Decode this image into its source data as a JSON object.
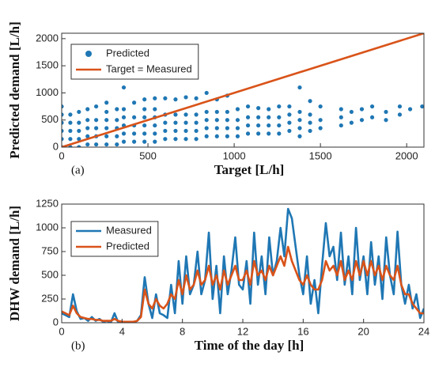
{
  "chart_data": [
    {
      "type": "scatter",
      "xlabel": "Target [L/h]",
      "ylabel": "Predicted demand [L/h]",
      "annotation": "(a)",
      "xlim": [
        0,
        2100
      ],
      "ylim": [
        0,
        2100
      ],
      "xticks": [
        0,
        500,
        1000,
        1500,
        2000
      ],
      "yticks": [
        0,
        500,
        1000,
        1500,
        2000
      ],
      "legend": "upper left",
      "series": [
        {
          "name": "Predicted",
          "type": "scatter",
          "color": "#1f77b4",
          "x": [
            0,
            0,
            0,
            0,
            0,
            0,
            50,
            50,
            50,
            50,
            50,
            100,
            100,
            100,
            100,
            100,
            150,
            150,
            150,
            150,
            150,
            200,
            200,
            200,
            200,
            200,
            260,
            260,
            260,
            260,
            260,
            260,
            320,
            320,
            320,
            320,
            320,
            360,
            360,
            360,
            360,
            360,
            360,
            420,
            420,
            420,
            420,
            420,
            480,
            480,
            480,
            480,
            480,
            480,
            540,
            540,
            540,
            540,
            540,
            540,
            600,
            600,
            600,
            600,
            600,
            660,
            660,
            660,
            660,
            660,
            720,
            720,
            720,
            720,
            720,
            780,
            780,
            780,
            780,
            780,
            840,
            840,
            840,
            840,
            840,
            900,
            900,
            900,
            900,
            900,
            960,
            960,
            960,
            960,
            960,
            1020,
            1020,
            1020,
            1020,
            1080,
            1080,
            1080,
            1080,
            1140,
            1140,
            1140,
            1140,
            1200,
            1200,
            1200,
            1200,
            1260,
            1260,
            1260,
            1260,
            1320,
            1320,
            1320,
            1320,
            1380,
            1380,
            1380,
            1380,
            1380,
            1440,
            1440,
            1440,
            1440,
            1500,
            1500,
            1500,
            1620,
            1620,
            1620,
            1680,
            1680,
            1740,
            1740,
            1800,
            1800,
            1880,
            1880,
            1960,
            1960,
            2020,
            2090
          ],
          "values": [
            0,
            150,
            300,
            450,
            600,
            750,
            0,
            150,
            300,
            450,
            600,
            0,
            150,
            300,
            450,
            650,
            50,
            200,
            350,
            500,
            700,
            50,
            200,
            350,
            500,
            750,
            50,
            200,
            350,
            500,
            650,
            820,
            50,
            200,
            350,
            500,
            700,
            100,
            250,
            400,
            550,
            700,
            1100,
            100,
            250,
            400,
            550,
            820,
            100,
            250,
            400,
            550,
            700,
            880,
            100,
            250,
            400,
            550,
            700,
            900,
            150,
            300,
            450,
            600,
            900,
            150,
            300,
            450,
            600,
            880,
            150,
            300,
            450,
            600,
            920,
            150,
            300,
            450,
            600,
            900,
            200,
            350,
            500,
            650,
            1000,
            200,
            350,
            500,
            650,
            880,
            200,
            350,
            500,
            650,
            950,
            200,
            350,
            500,
            700,
            250,
            400,
            550,
            750,
            250,
            400,
            550,
            720,
            250,
            400,
            550,
            700,
            250,
            400,
            550,
            750,
            300,
            450,
            600,
            750,
            200,
            350,
            500,
            650,
            1100,
            300,
            450,
            600,
            850,
            350,
            500,
            750,
            400,
            550,
            700,
            450,
            650,
            500,
            700,
            550,
            750,
            500,
            650,
            600,
            750,
            700,
            750
          ]
        },
        {
          "name": "Target = Measured",
          "type": "line",
          "color": "#d95319",
          "x": [
            0,
            2100
          ],
          "values": [
            0,
            2100
          ]
        }
      ]
    },
    {
      "type": "line",
      "xlabel": "Time of the day [h]",
      "ylabel": "DHW demand [L/h]",
      "annotation": "(b)",
      "xlim": [
        0,
        24
      ],
      "ylim": [
        0,
        1250
      ],
      "xticks": [
        0,
        4,
        8,
        12,
        16,
        20,
        24
      ],
      "yticks": [
        0,
        250,
        500,
        750,
        1000,
        1250
      ],
      "legend": "upper left",
      "x": [
        0,
        0.25,
        0.5,
        0.75,
        1,
        1.25,
        1.5,
        1.75,
        2,
        2.25,
        2.5,
        2.75,
        3,
        3.25,
        3.5,
        3.75,
        4,
        4.25,
        4.5,
        4.75,
        5,
        5.25,
        5.5,
        5.75,
        6,
        6.25,
        6.5,
        6.75,
        7,
        7.25,
        7.5,
        7.75,
        8,
        8.25,
        8.5,
        8.75,
        9,
        9.25,
        9.5,
        9.75,
        10,
        10.25,
        10.5,
        10.75,
        11,
        11.25,
        11.5,
        11.75,
        12,
        12.25,
        12.5,
        12.75,
        13,
        13.25,
        13.5,
        13.75,
        14,
        14.25,
        14.5,
        14.75,
        15,
        15.25,
        15.5,
        15.75,
        16,
        16.25,
        16.5,
        16.75,
        17,
        17.25,
        17.5,
        17.75,
        18,
        18.25,
        18.5,
        18.75,
        19,
        19.25,
        19.5,
        19.75,
        20,
        20.25,
        20.5,
        20.75,
        21,
        21.25,
        21.5,
        21.75,
        22,
        22.25,
        22.5,
        22.75,
        23,
        23.25,
        23.5,
        23.75,
        24
      ],
      "series": [
        {
          "name": "Measured",
          "color": "#1f77b4",
          "values": [
            100,
            80,
            60,
            300,
            120,
            40,
            50,
            20,
            60,
            20,
            40,
            10,
            20,
            0,
            100,
            0,
            0,
            0,
            0,
            0,
            20,
            80,
            480,
            200,
            50,
            300,
            100,
            80,
            50,
            400,
            100,
            650,
            200,
            700,
            300,
            400,
            750,
            300,
            450,
            950,
            250,
            600,
            100,
            700,
            300,
            550,
            900,
            400,
            350,
            650,
            200,
            950,
            400,
            700,
            300,
            900,
            500,
            650,
            1000,
            700,
            1200,
            1100,
            800,
            500,
            300,
            700,
            200,
            450,
            100,
            600,
            1050,
            700,
            800,
            450,
            950,
            400,
            700,
            300,
            1000,
            450,
            700,
            300,
            850,
            400,
            700,
            250,
            900,
            500,
            300,
            960,
            400,
            200,
            400,
            150,
            300,
            50,
            150
          ]
        },
        {
          "name": "Predicted",
          "color": "#d95319",
          "values": [
            120,
            100,
            80,
            180,
            100,
            60,
            50,
            40,
            40,
            30,
            30,
            20,
            20,
            20,
            40,
            20,
            10,
            10,
            10,
            10,
            20,
            60,
            350,
            200,
            150,
            250,
            180,
            150,
            200,
            300,
            250,
            450,
            300,
            500,
            350,
            400,
            550,
            400,
            450,
            600,
            400,
            500,
            350,
            550,
            400,
            500,
            600,
            450,
            450,
            550,
            400,
            650,
            500,
            550,
            450,
            600,
            500,
            600,
            700,
            600,
            800,
            650,
            550,
            450,
            400,
            500,
            400,
            350,
            350,
            450,
            650,
            550,
            600,
            500,
            650,
            450,
            550,
            450,
            650,
            500,
            650,
            500,
            650,
            500,
            600,
            450,
            600,
            500,
            450,
            600,
            400,
            300,
            300,
            200,
            150,
            100,
            100
          ]
        }
      ]
    }
  ]
}
